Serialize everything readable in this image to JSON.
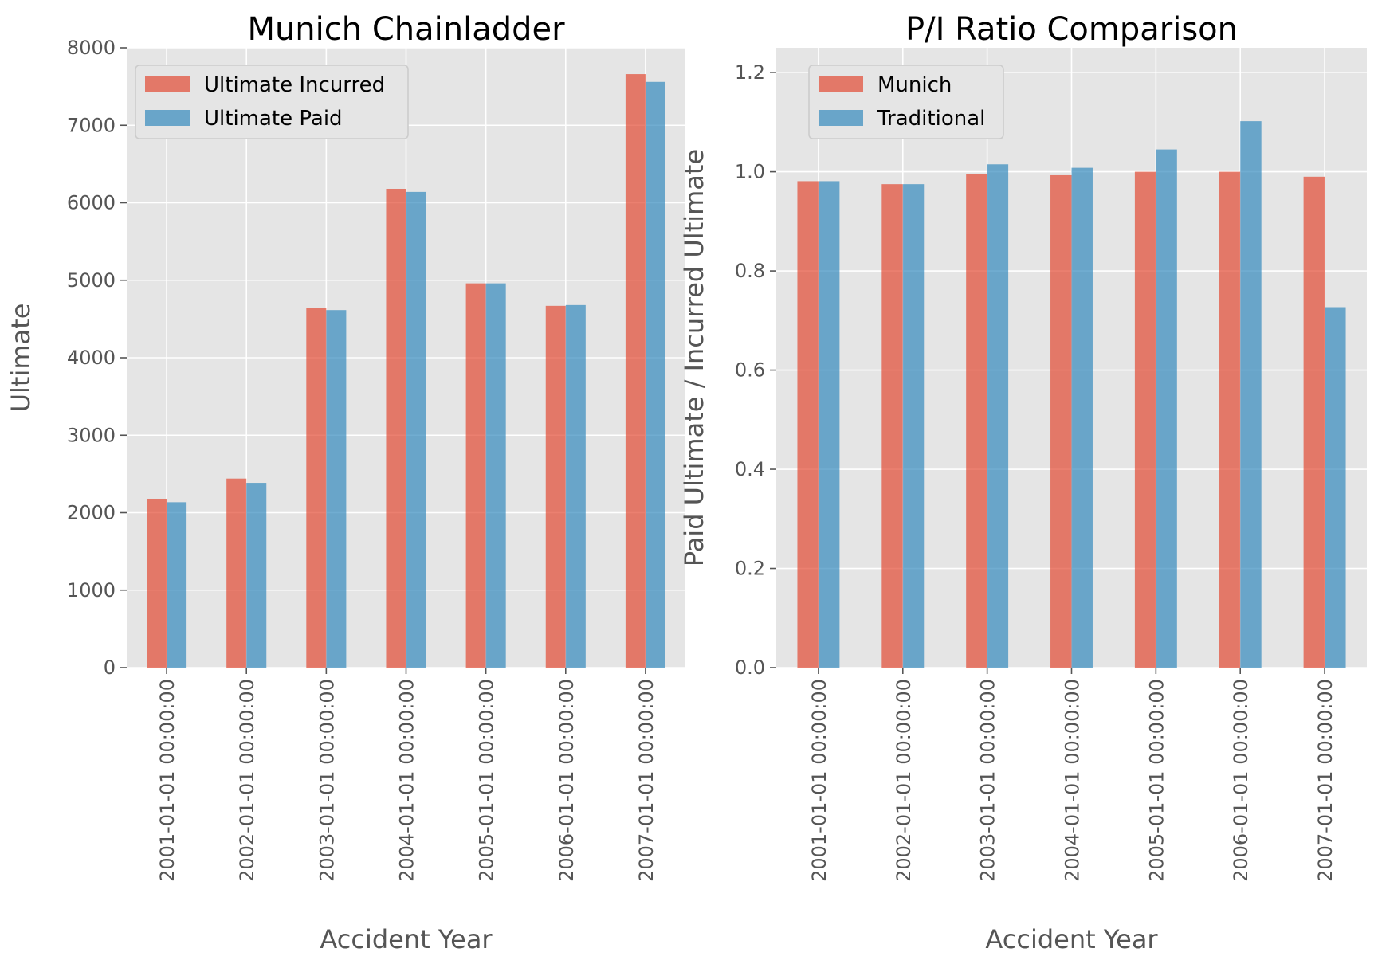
{
  "chart_data": [
    {
      "type": "bar",
      "title": "Munich Chainladder",
      "xlabel": "Accident Year",
      "ylabel": "Ultimate",
      "categories": [
        "2001-01-01 00:00:00",
        "2002-01-01 00:00:00",
        "2003-01-01 00:00:00",
        "2004-01-01 00:00:00",
        "2005-01-01 00:00:00",
        "2006-01-01 00:00:00",
        "2007-01-01 00:00:00"
      ],
      "series": [
        {
          "name": "Ultimate Incurred",
          "color": "#E24A33",
          "values": [
            2180,
            2440,
            4640,
            6180,
            4960,
            4670,
            7660
          ]
        },
        {
          "name": "Ultimate Paid",
          "color": "#348ABD",
          "values": [
            2135,
            2385,
            4615,
            6140,
            4960,
            4680,
            7560
          ]
        }
      ],
      "ylim": [
        0,
        8000
      ],
      "yticks": [
        0,
        1000,
        2000,
        3000,
        4000,
        5000,
        6000,
        7000,
        8000
      ],
      "ytick_labels": [
        "0",
        "1000",
        "2000",
        "3000",
        "4000",
        "5000",
        "6000",
        "7000",
        "8000"
      ],
      "grid": true,
      "legend": "upper left"
    },
    {
      "type": "bar",
      "title": "P/I Ratio Comparison",
      "xlabel": "Accident Year",
      "ylabel": "Paid Ultimate / Incurred Ultimate",
      "categories": [
        "2001-01-01 00:00:00",
        "2002-01-01 00:00:00",
        "2003-01-01 00:00:00",
        "2004-01-01 00:00:00",
        "2005-01-01 00:00:00",
        "2006-01-01 00:00:00",
        "2007-01-01 00:00:00"
      ],
      "series": [
        {
          "name": "Munich",
          "color": "#E24A33",
          "values": [
            0.981,
            0.975,
            0.995,
            0.993,
            1.0,
            1.0,
            0.99
          ]
        },
        {
          "name": "Traditional",
          "color": "#348ABD",
          "values": [
            0.981,
            0.975,
            1.015,
            1.008,
            1.045,
            1.102,
            0.727
          ]
        }
      ],
      "ylim": [
        0,
        1.25
      ],
      "yticks": [
        0,
        0.2,
        0.4,
        0.6,
        0.8,
        1.0,
        1.2
      ],
      "ytick_labels": [
        "0.0",
        "0.2",
        "0.4",
        "0.6",
        "0.8",
        "1.0",
        "1.2"
      ],
      "grid": true,
      "legend": "upper left"
    }
  ]
}
